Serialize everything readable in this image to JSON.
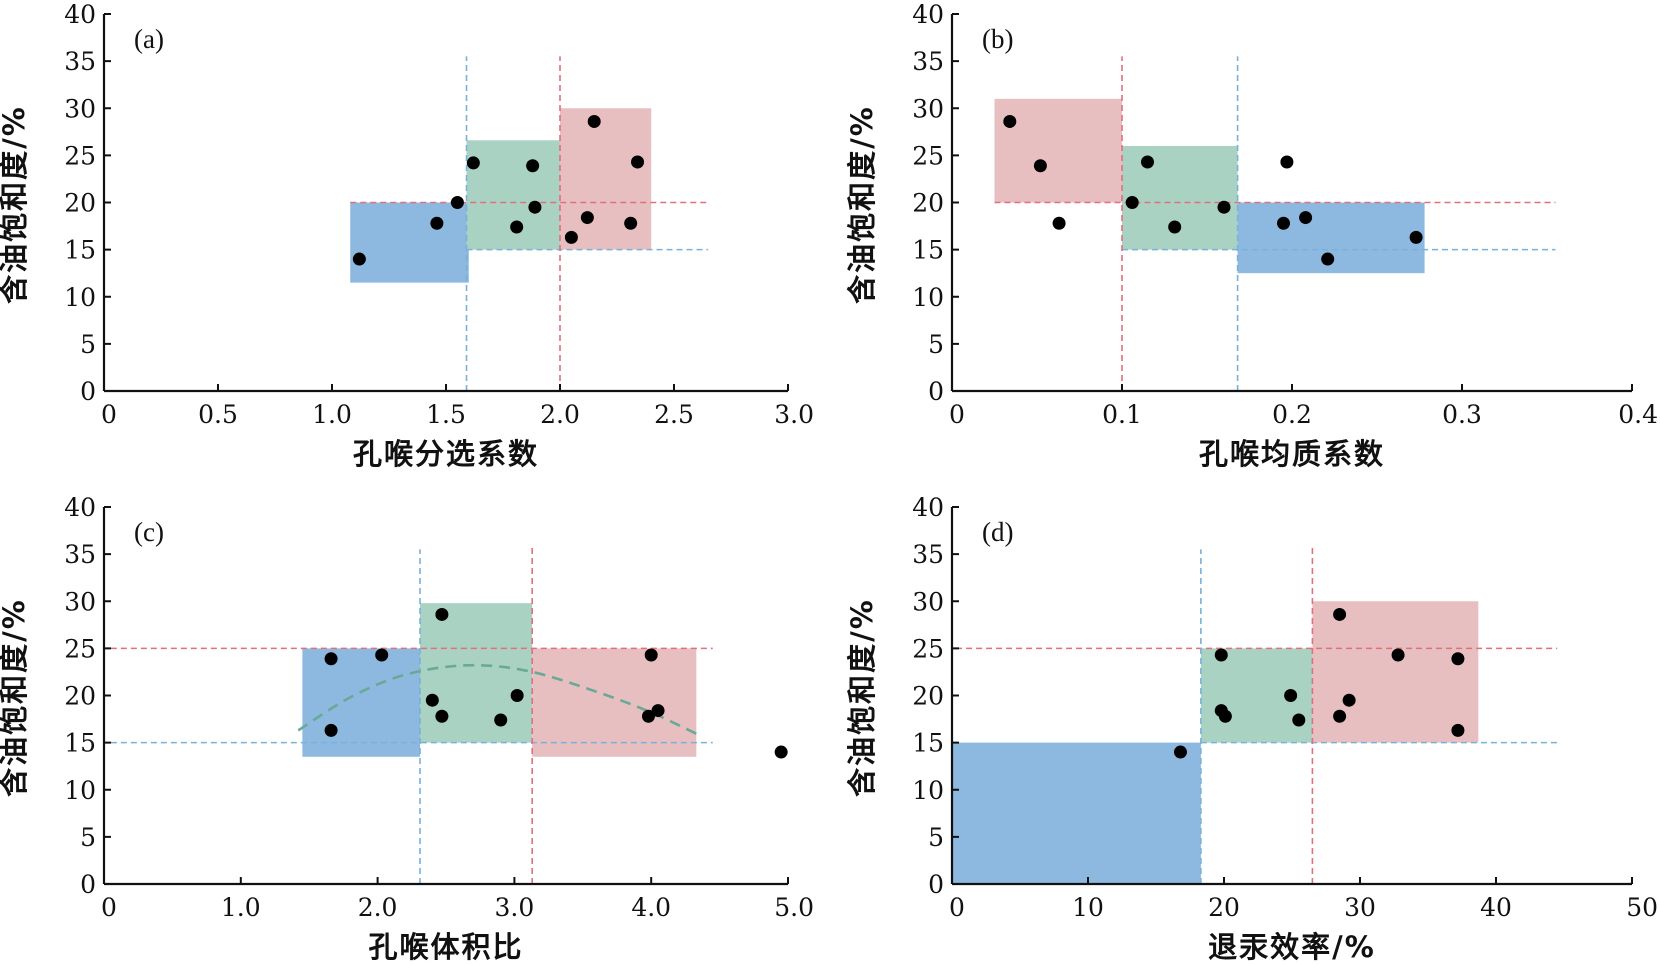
{
  "chart_data": [
    {
      "type": "scatter",
      "panel": "(a)",
      "xlabel": "孔喉分选系数",
      "ylabel": "含油饱和度/%",
      "xlim": [
        0,
        3.0
      ],
      "ylim": [
        0,
        40
      ],
      "xticks": [
        0,
        0.5,
        1.0,
        1.5,
        2.0,
        2.5,
        3.0
      ],
      "xtick_labels": [
        "0",
        "0.5",
        "1.0",
        "1.5",
        "2.0",
        "2.5",
        "3.0"
      ],
      "yticks": [
        0,
        5,
        10,
        15,
        20,
        25,
        30,
        35,
        40
      ],
      "ytick_labels": [
        "0",
        "5",
        "10",
        "15",
        "20",
        "25",
        "30",
        "35",
        "40"
      ],
      "points": [
        {
          "x": 1.12,
          "y": 14.0
        },
        {
          "x": 1.46,
          "y": 17.8
        },
        {
          "x": 1.55,
          "y": 20.0
        },
        {
          "x": 1.62,
          "y": 24.2
        },
        {
          "x": 1.81,
          "y": 17.4
        },
        {
          "x": 1.88,
          "y": 23.9
        },
        {
          "x": 1.89,
          "y": 19.5
        },
        {
          "x": 2.05,
          "y": 16.3
        },
        {
          "x": 2.12,
          "y": 18.4
        },
        {
          "x": 2.15,
          "y": 28.6
        },
        {
          "x": 2.31,
          "y": 17.8
        },
        {
          "x": 2.34,
          "y": 24.3
        }
      ],
      "regions": [
        {
          "x0": 1.08,
          "x1": 1.6,
          "y0": 11.5,
          "y1": 20.0,
          "color": "#8db9e1"
        },
        {
          "x0": 1.59,
          "x1": 2.0,
          "y0": 15.0,
          "y1": 26.6,
          "color": "#a9d2c3"
        },
        {
          "x0": 2.0,
          "x1": 2.4,
          "y0": 15.0,
          "y1": 30.0,
          "color": "#e8bfc0"
        }
      ],
      "hlines": [
        {
          "y": 20,
          "x0": 1.08,
          "x1": 2.65,
          "color": "#e0707c"
        },
        {
          "y": 15,
          "x0": 1.59,
          "x1": 2.65,
          "color": "#78b1d9"
        }
      ],
      "vlines": [
        {
          "x": 1.59,
          "y0": 0,
          "y1": 35.5,
          "color": "#78b1d9"
        },
        {
          "x": 2.0,
          "y0": 0,
          "y1": 35.5,
          "color": "#e0707c"
        }
      ]
    },
    {
      "type": "scatter",
      "panel": "(b)",
      "xlabel": "孔喉均质系数",
      "ylabel": "含油饱和度/%",
      "xlim": [
        0,
        0.4
      ],
      "ylim": [
        0,
        40
      ],
      "xticks": [
        0,
        0.1,
        0.2,
        0.3,
        0.4
      ],
      "xtick_labels": [
        "0",
        "0.1",
        "0.2",
        "0.3",
        "0.4"
      ],
      "yticks": [
        0,
        5,
        10,
        15,
        20,
        25,
        30,
        35,
        40
      ],
      "ytick_labels": [
        "0",
        "5",
        "10",
        "15",
        "20",
        "25",
        "30",
        "35",
        "40"
      ],
      "points": [
        {
          "x": 0.034,
          "y": 28.6
        },
        {
          "x": 0.052,
          "y": 23.9
        },
        {
          "x": 0.063,
          "y": 17.8
        },
        {
          "x": 0.106,
          "y": 20.0
        },
        {
          "x": 0.115,
          "y": 24.3
        },
        {
          "x": 0.131,
          "y": 17.4
        },
        {
          "x": 0.16,
          "y": 19.5
        },
        {
          "x": 0.195,
          "y": 17.8
        },
        {
          "x": 0.197,
          "y": 24.3
        },
        {
          "x": 0.208,
          "y": 18.4
        },
        {
          "x": 0.221,
          "y": 14.0
        },
        {
          "x": 0.273,
          "y": 16.3
        }
      ],
      "regions": [
        {
          "x0": 0.025,
          "x1": 0.1,
          "y0": 20.0,
          "y1": 31.0,
          "color": "#e8bfc0"
        },
        {
          "x0": 0.1,
          "x1": 0.168,
          "y0": 15.0,
          "y1": 26.0,
          "color": "#a9d2c3"
        },
        {
          "x0": 0.168,
          "x1": 0.278,
          "y0": 12.5,
          "y1": 20.0,
          "color": "#8db9e1"
        }
      ],
      "hlines": [
        {
          "y": 20,
          "x0": 0.025,
          "x1": 0.355,
          "color": "#e0707c"
        },
        {
          "y": 15,
          "x0": 0.1,
          "x1": 0.355,
          "color": "#78b1d9"
        }
      ],
      "vlines": [
        {
          "x": 0.1,
          "y0": 0,
          "y1": 35.5,
          "color": "#e0707c"
        },
        {
          "x": 0.168,
          "y0": 0,
          "y1": 35.5,
          "color": "#78b1d9"
        }
      ]
    },
    {
      "type": "scatter",
      "panel": "(c)",
      "xlabel": "孔喉体积比",
      "ylabel": "含油饱和度/%",
      "xlim": [
        0,
        5.0
      ],
      "ylim": [
        0,
        40
      ],
      "xticks": [
        0,
        1.0,
        2.0,
        3.0,
        4.0,
        5.0
      ],
      "xtick_labels": [
        "0",
        "1.0",
        "2.0",
        "3.0",
        "4.0",
        "5.0"
      ],
      "yticks": [
        0,
        5,
        10,
        15,
        20,
        25,
        30,
        35,
        40
      ],
      "ytick_labels": [
        "0",
        "5",
        "10",
        "15",
        "20",
        "25",
        "30",
        "35",
        "40"
      ],
      "points": [
        {
          "x": 1.66,
          "y": 23.9
        },
        {
          "x": 1.66,
          "y": 16.3
        },
        {
          "x": 2.03,
          "y": 24.3
        },
        {
          "x": 2.4,
          "y": 19.5
        },
        {
          "x": 2.47,
          "y": 28.6
        },
        {
          "x": 2.47,
          "y": 17.8
        },
        {
          "x": 2.9,
          "y": 17.4
        },
        {
          "x": 3.02,
          "y": 20.0
        },
        {
          "x": 3.98,
          "y": 17.8
        },
        {
          "x": 4.0,
          "y": 24.3
        },
        {
          "x": 4.05,
          "y": 18.4
        },
        {
          "x": 4.95,
          "y": 14.0
        }
      ],
      "regions": [
        {
          "x0": 1.45,
          "x1": 2.31,
          "y0": 13.5,
          "y1": 25.0,
          "color": "#8db9e1"
        },
        {
          "x0": 2.31,
          "x1": 3.13,
          "y0": 15.0,
          "y1": 29.8,
          "color": "#a9d2c3"
        },
        {
          "x0": 3.13,
          "x1": 4.33,
          "y0": 13.5,
          "y1": 25.0,
          "color": "#e8bfc0"
        }
      ],
      "hlines": [
        {
          "y": 25,
          "x0": 0.05,
          "x1": 4.45,
          "color": "#e0707c"
        },
        {
          "y": 15,
          "x0": 0.05,
          "x1": 4.45,
          "color": "#78b1d9"
        }
      ],
      "vlines": [
        {
          "x": 2.31,
          "y0": 0,
          "y1": 35.5,
          "color": "#78b1d9"
        },
        {
          "x": 3.13,
          "y0": 0,
          "y1": 36.0,
          "color": "#e0707c"
        }
      ],
      "trend": {
        "x": [
          1.42,
          1.8,
          2.2,
          2.65,
          3.1,
          3.6,
          4.0,
          4.35
        ],
        "y": [
          16.3,
          19.8,
          22.2,
          23.2,
          22.6,
          20.4,
          18.2,
          15.8
        ],
        "color": "#6aa996"
      }
    },
    {
      "type": "scatter",
      "panel": "(d)",
      "xlabel": "退汞效率/%",
      "ylabel": "含油饱和度/%",
      "xlim": [
        0,
        50
      ],
      "ylim": [
        0,
        40
      ],
      "xticks": [
        0,
        10,
        20,
        30,
        40,
        50
      ],
      "xtick_labels": [
        "0",
        "10",
        "20",
        "30",
        "40",
        "50"
      ],
      "yticks": [
        0,
        5,
        10,
        15,
        20,
        25,
        30,
        35,
        40
      ],
      "ytick_labels": [
        "0",
        "5",
        "10",
        "15",
        "20",
        "25",
        "30",
        "35",
        "40"
      ],
      "points": [
        {
          "x": 16.8,
          "y": 14.0
        },
        {
          "x": 19.8,
          "y": 24.3
        },
        {
          "x": 19.8,
          "y": 18.4
        },
        {
          "x": 20.1,
          "y": 17.8
        },
        {
          "x": 24.9,
          "y": 20.0
        },
        {
          "x": 25.5,
          "y": 17.4
        },
        {
          "x": 28.5,
          "y": 28.6
        },
        {
          "x": 28.5,
          "y": 17.8
        },
        {
          "x": 29.2,
          "y": 19.5
        },
        {
          "x": 32.8,
          "y": 24.3
        },
        {
          "x": 37.2,
          "y": 23.9
        },
        {
          "x": 37.2,
          "y": 16.3
        }
      ],
      "regions": [
        {
          "x0": 0,
          "x1": 18.3,
          "y0": 0,
          "y1": 15.0,
          "color": "#8db9e1"
        },
        {
          "x0": 18.3,
          "x1": 26.5,
          "y0": 15.0,
          "y1": 25.0,
          "color": "#a9d2c3"
        },
        {
          "x0": 26.5,
          "x1": 38.7,
          "y0": 15.0,
          "y1": 30.0,
          "color": "#e8bfc0"
        }
      ],
      "hlines": [
        {
          "y": 25,
          "x0": 0.3,
          "x1": 44.5,
          "color": "#e0707c"
        },
        {
          "y": 15,
          "x0": 18.3,
          "x1": 44.5,
          "color": "#78b1d9"
        }
      ],
      "vlines": [
        {
          "x": 18.3,
          "y0": 0,
          "y1": 35.5,
          "color": "#78b1d9"
        },
        {
          "x": 26.5,
          "y0": 0,
          "y1": 36.0,
          "color": "#e0707c"
        }
      ]
    }
  ]
}
